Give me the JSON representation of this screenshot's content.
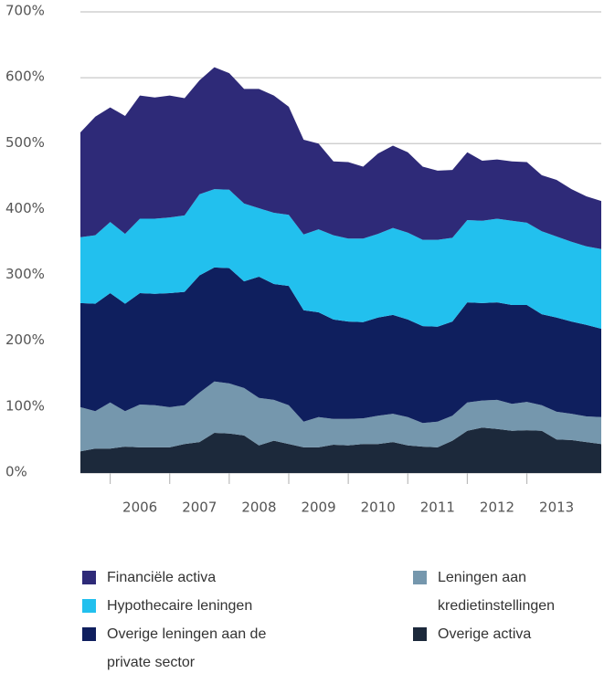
{
  "chart_data": {
    "type": "stacked_area",
    "x": [
      2005.5,
      2005.75,
      2006,
      2006.25,
      2006.5,
      2006.75,
      2007,
      2007.25,
      2007.5,
      2007.75,
      2008,
      2008.25,
      2008.5,
      2008.75,
      2009,
      2009.25,
      2009.5,
      2009.75,
      2010,
      2010.25,
      2010.5,
      2010.75,
      2011,
      2011.25,
      2011.5,
      2011.75,
      2012,
      2012.25,
      2012.5,
      2012.75,
      2013,
      2013.25,
      2013.5,
      2013.75,
      2014,
      2014.25
    ],
    "xlim": [
      2005.5,
      2014.25
    ],
    "xticks": [
      {
        "value": 2006.5,
        "label": "2006"
      },
      {
        "value": 2007.5,
        "label": "2007"
      },
      {
        "value": 2008.5,
        "label": "2008"
      },
      {
        "value": 2009.5,
        "label": "2009"
      },
      {
        "value": 2010.5,
        "label": "2010"
      },
      {
        "value": 2011.5,
        "label": "2011"
      },
      {
        "value": 2012.5,
        "label": "2012"
      },
      {
        "value": 2013.5,
        "label": "2013"
      }
    ],
    "xtick_marks": [
      2006,
      2007,
      2008,
      2009,
      2010,
      2011,
      2012,
      2013
    ],
    "ylim": [
      0,
      700
    ],
    "yticks": [
      {
        "value": 0,
        "label": "0%"
      },
      {
        "value": 100,
        "label": "100%"
      },
      {
        "value": 200,
        "label": "200%"
      },
      {
        "value": 300,
        "label": "300%"
      },
      {
        "value": 400,
        "label": "400%"
      },
      {
        "value": 500,
        "label": "500%"
      },
      {
        "value": 600,
        "label": "600%"
      },
      {
        "value": 700,
        "label": "700%"
      }
    ],
    "grid": true,
    "series": [
      {
        "name": "Financiële activa",
        "color": "#2e2a78",
        "values": [
          159,
          180,
          174,
          179,
          187,
          184,
          185,
          178,
          173,
          185,
          177,
          174,
          181,
          178,
          164,
          144,
          130,
          112,
          116,
          109,
          122,
          125,
          122,
          111,
          105,
          103,
          103,
          91,
          90,
          90,
          92,
          85,
          86,
          80,
          76,
          73
        ]
      },
      {
        "name": "Hypothecaire leningen",
        "color": "#22c0ee",
        "values": [
          100,
          104,
          108,
          106,
          113,
          114,
          115,
          116,
          123,
          119,
          119,
          118,
          104,
          108,
          108,
          115,
          126,
          128,
          126,
          127,
          127,
          132,
          132,
          131,
          132,
          127,
          125,
          125,
          127,
          128,
          125,
          126,
          123,
          121,
          119,
          121
        ]
      },
      {
        "name": "Overige leningen aan de private sector",
        "color": "#0f1f5e",
        "values": [
          158,
          163,
          166,
          163,
          169,
          169,
          173,
          172,
          178,
          173,
          175,
          162,
          184,
          176,
          181,
          169,
          159,
          151,
          148,
          146,
          149,
          150,
          148,
          147,
          144,
          143,
          152,
          148,
          148,
          150,
          147,
          138,
          143,
          140,
          139,
          134
        ]
      },
      {
        "name": "Leningen aan kredietinstellingen",
        "color": "#7597ad",
        "values": [
          67,
          57,
          70,
          54,
          65,
          64,
          61,
          59,
          75,
          78,
          76,
          72,
          72,
          62,
          59,
          39,
          46,
          39,
          40,
          39,
          43,
          43,
          43,
          36,
          39,
          38,
          43,
          41,
          44,
          41,
          43,
          39,
          42,
          40,
          39,
          41
        ]
      },
      {
        "name": "Overige activa",
        "color": "#1c293b",
        "values": [
          33,
          37,
          37,
          40,
          39,
          39,
          39,
          44,
          47,
          61,
          60,
          57,
          42,
          49,
          44,
          39,
          39,
          43,
          42,
          44,
          44,
          47,
          42,
          40,
          39,
          49,
          64,
          69,
          67,
          64,
          65,
          64,
          51,
          50,
          47,
          44
        ]
      }
    ]
  }
}
